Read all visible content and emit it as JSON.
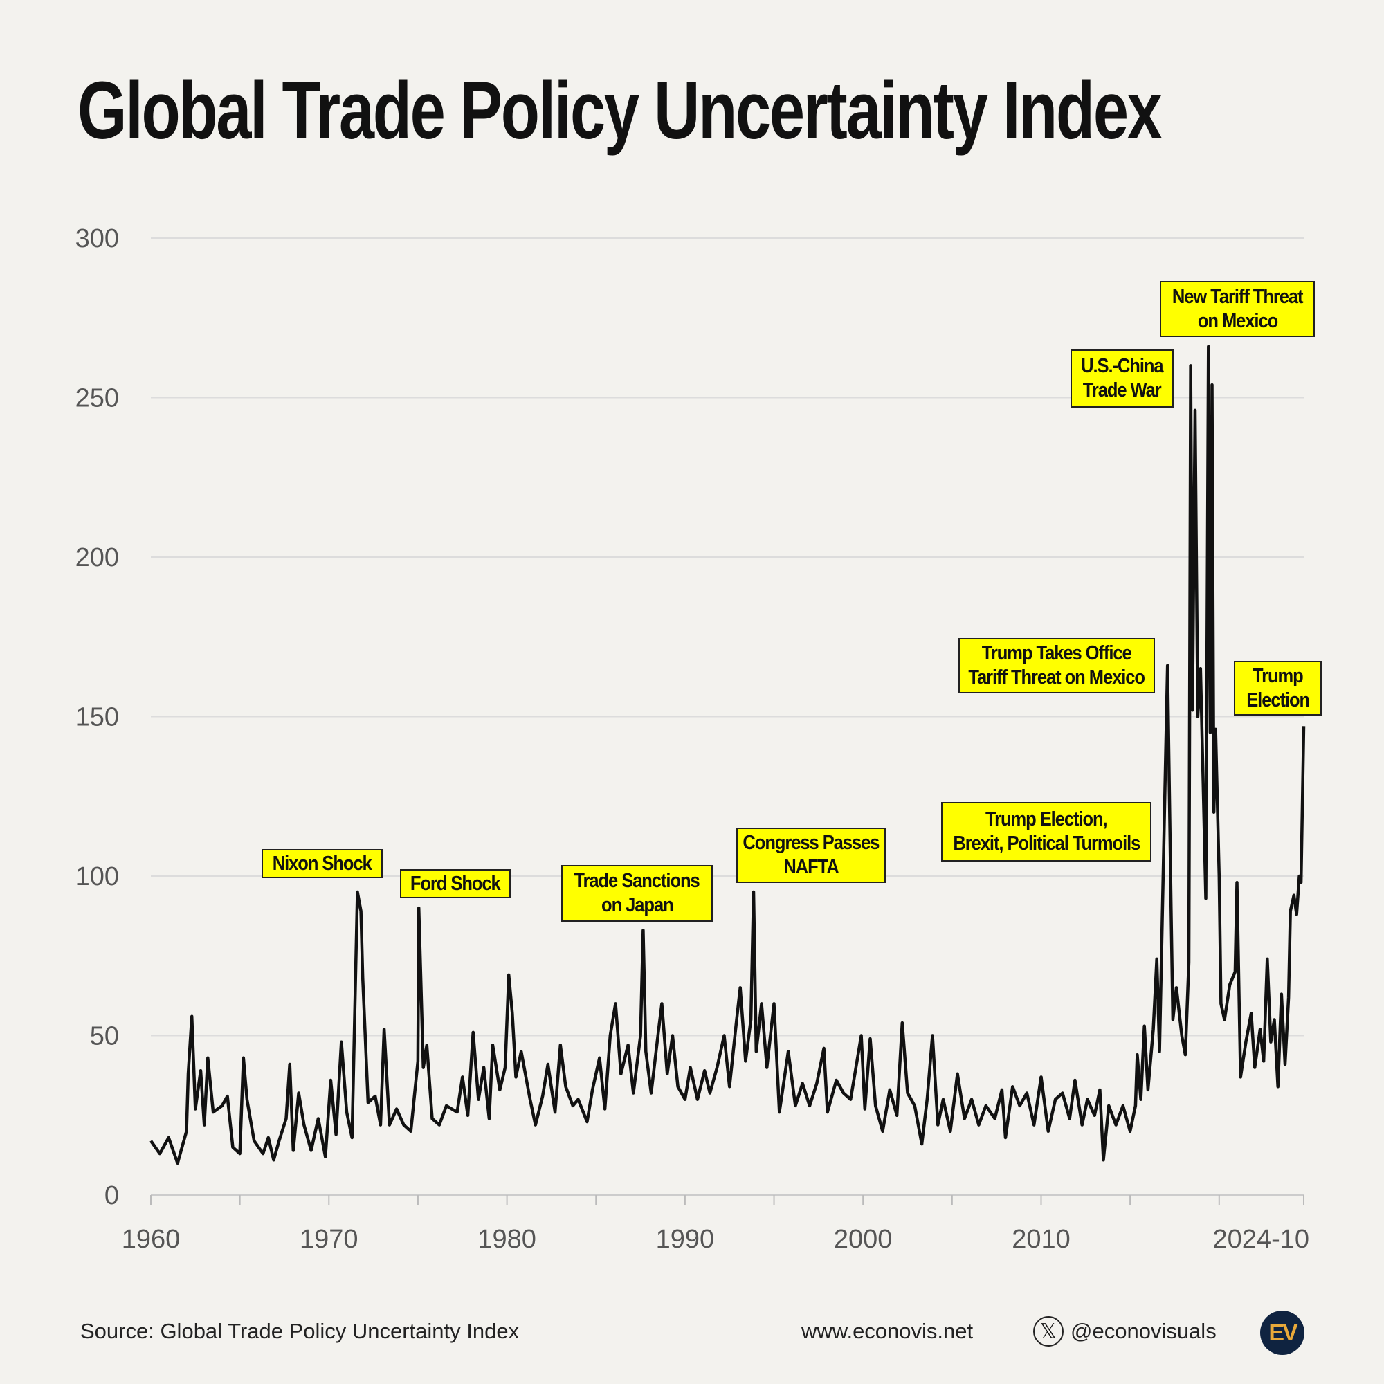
{
  "title": "Global Trade Policy Uncertainty Index",
  "footer": {
    "source": "Source: Global Trade Policy Uncertainty Index",
    "website": "www.econovis.net",
    "handle": "@econovisuals",
    "x_icon": "x-logo-icon",
    "logo_text": "EV"
  },
  "colors": {
    "background": "#f3f2ee",
    "line": "#111111",
    "annotation_fill": "#ffff00",
    "grid": "#dcdcdc",
    "logo_bg": "#0f2340",
    "logo_fg": "#e8a93a"
  },
  "chart_data": {
    "type": "line",
    "title": "Global Trade Policy Uncertainty Index",
    "xlabel": "",
    "ylabel": "",
    "xlim": [
      1960,
      2024.75
    ],
    "ylim": [
      0,
      300
    ],
    "grid": "horizontal",
    "legend": "none",
    "yticks": [
      "0",
      "50",
      "100",
      "150",
      "200",
      "250",
      "300"
    ],
    "xticks": [
      {
        "value": 1960,
        "label": "1960"
      },
      {
        "value": 1970,
        "label": "1970"
      },
      {
        "value": 1980,
        "label": "1980"
      },
      {
        "value": 1990,
        "label": "1990"
      },
      {
        "value": 2000,
        "label": "2000"
      },
      {
        "value": 2010,
        "label": "2010"
      },
      {
        "value": 2024.75,
        "label": "2024-10"
      }
    ],
    "series": [
      {
        "x": [
          1960,
          1960.5,
          1961,
          1961.5,
          1962,
          1962.1,
          1962.3,
          1962.5,
          1962.8,
          1963,
          1963.2,
          1963.5,
          1964,
          1964.3,
          1964.6,
          1965,
          1965.2,
          1965.4,
          1965.8,
          1966.3,
          1966.6,
          1966.9,
          1967.2,
          1967.6,
          1967.8,
          1968,
          1968.3,
          1968.6,
          1969,
          1969.4,
          1969.8,
          1970.1,
          1970.4,
          1970.7,
          1971,
          1971.3,
          1971.6,
          1971.8,
          1971.9,
          1972.2,
          1972.6,
          1972.9,
          1973.1,
          1973.4,
          1973.8,
          1974.2,
          1974.6,
          1975,
          1975.05,
          1975.3,
          1975.5,
          1975.8,
          1976.2,
          1976.6,
          1977.2,
          1977.5,
          1977.8,
          1978.1,
          1978.4,
          1978.7,
          1979,
          1979.2,
          1979.6,
          1979.9,
          1980.1,
          1980.3,
          1980.5,
          1980.8,
          1981.3,
          1981.6,
          1982,
          1982.3,
          1982.7,
          1983,
          1983.3,
          1983.7,
          1984,
          1984.5,
          1984.8,
          1985.2,
          1985.5,
          1985.8,
          1986.1,
          1986.4,
          1986.8,
          1987.1,
          1987.5,
          1987.65,
          1987.8,
          1988.1,
          1988.5,
          1988.7,
          1989,
          1989.3,
          1989.6,
          1990,
          1990.3,
          1990.7,
          1991.1,
          1991.4,
          1991.8,
          1992.2,
          1992.5,
          1992.9,
          1993.1,
          1993.4,
          1993.7,
          1993.85,
          1994,
          1994.3,
          1994.6,
          1995,
          1995.3,
          1995.8,
          1996.2,
          1996.6,
          1997,
          1997.4,
          1997.8,
          1998,
          1998.5,
          1998.9,
          1999.3,
          1999.9,
          2000.1,
          2000.4,
          2000.7,
          2001.1,
          2001.5,
          2001.9,
          2002.2,
          2002.5,
          2002.9,
          2003.3,
          2003.6,
          2003.9,
          2004.2,
          2004.5,
          2004.9,
          2005.3,
          2005.7,
          2006.1,
          2006.5,
          2006.9,
          2007.4,
          2007.8,
          2008,
          2008.4,
          2008.8,
          2009.2,
          2009.6,
          2010,
          2010.4,
          2010.8,
          2011.2,
          2011.6,
          2011.9,
          2012.3,
          2012.6,
          2013,
          2013.3,
          2013.5,
          2013.8,
          2014.2,
          2014.6,
          2015,
          2015.3,
          2015.4,
          2015.6,
          2015.8,
          2016,
          2016.3,
          2016.5,
          2016.65,
          2016.9,
          2017.1,
          2017.3,
          2017.4,
          2017.6,
          2017.9,
          2018.1,
          2018.3,
          2018.4,
          2018.5,
          2018.65,
          2018.8,
          2018.95,
          2019.1,
          2019.25,
          2019.4,
          2019.5,
          2019.6,
          2019.7,
          2019.8,
          2020,
          2020.1,
          2020.3,
          2020.6,
          2020.9,
          2021,
          2021.2,
          2021.5,
          2021.8,
          2022,
          2022.3,
          2022.5,
          2022.7,
          2022.9,
          2023.1,
          2023.3,
          2023.5,
          2023.7,
          2023.9,
          2024,
          2024.2,
          2024.35,
          2024.5,
          2024.6,
          2024.75
        ],
        "y": [
          17,
          13,
          18,
          10,
          20,
          38,
          56,
          27,
          39,
          22,
          43,
          26,
          28,
          31,
          15,
          13,
          43,
          30,
          17,
          13,
          18,
          11,
          17,
          24,
          41,
          14,
          32,
          22,
          14,
          24,
          12,
          36,
          19,
          48,
          26,
          18,
          95,
          89,
          68,
          29,
          31,
          22,
          52,
          22,
          27,
          22,
          20,
          42,
          90,
          40,
          47,
          24,
          22,
          28,
          26,
          37,
          25,
          51,
          30,
          40,
          24,
          47,
          33,
          40,
          69,
          57,
          37,
          45,
          30,
          22,
          31,
          41,
          26,
          47,
          34,
          28,
          30,
          23,
          33,
          43,
          27,
          50,
          60,
          38,
          47,
          32,
          50,
          83,
          45,
          32,
          51,
          60,
          38,
          50,
          34,
          30,
          40,
          30,
          39,
          32,
          40,
          50,
          34,
          55,
          65,
          42,
          55,
          95,
          45,
          60,
          40,
          60,
          26,
          45,
          28,
          35,
          28,
          35,
          46,
          26,
          36,
          32,
          30,
          50,
          27,
          49,
          28,
          20,
          33,
          25,
          54,
          32,
          28,
          16,
          30,
          50,
          22,
          30,
          20,
          38,
          24,
          30,
          22,
          28,
          24,
          33,
          18,
          34,
          28,
          32,
          22,
          37,
          20,
          30,
          32,
          24,
          36,
          22,
          30,
          25,
          33,
          11,
          28,
          22,
          28,
          20,
          28,
          44,
          30,
          53,
          33,
          52,
          74,
          45,
          112,
          166,
          90,
          55,
          65,
          50,
          44,
          73,
          260,
          152,
          246,
          150,
          165,
          130,
          93,
          266,
          145,
          254,
          120,
          146,
          100,
          60,
          55,
          66,
          70,
          98,
          37,
          48,
          57,
          40,
          52,
          42,
          74,
          48,
          55,
          34,
          63,
          41,
          62,
          89,
          94,
          88,
          100,
          98,
          147
        ]
      }
    ],
    "annotations": [
      {
        "id": "nixon",
        "lines": [
          "Nixon Shock"
        ]
      },
      {
        "id": "ford",
        "lines": [
          "Ford Shock"
        ]
      },
      {
        "id": "japan",
        "lines": [
          "Trade Sanctions",
          "on Japan"
        ]
      },
      {
        "id": "nafta",
        "lines": [
          "Congress Passes",
          "NAFTA"
        ]
      },
      {
        "id": "brexit",
        "lines": [
          "Trump Election,",
          "Brexit, Political Turmoils"
        ]
      },
      {
        "id": "office",
        "lines": [
          "Trump Takes Office",
          "Tariff Threat on Mexico"
        ]
      },
      {
        "id": "china",
        "lines": [
          "U.S.-China",
          "Trade War"
        ]
      },
      {
        "id": "mexico",
        "lines": [
          "New Tariff Threat",
          "on Mexico"
        ]
      },
      {
        "id": "election",
        "lines": [
          "Trump",
          "Election"
        ]
      }
    ]
  }
}
